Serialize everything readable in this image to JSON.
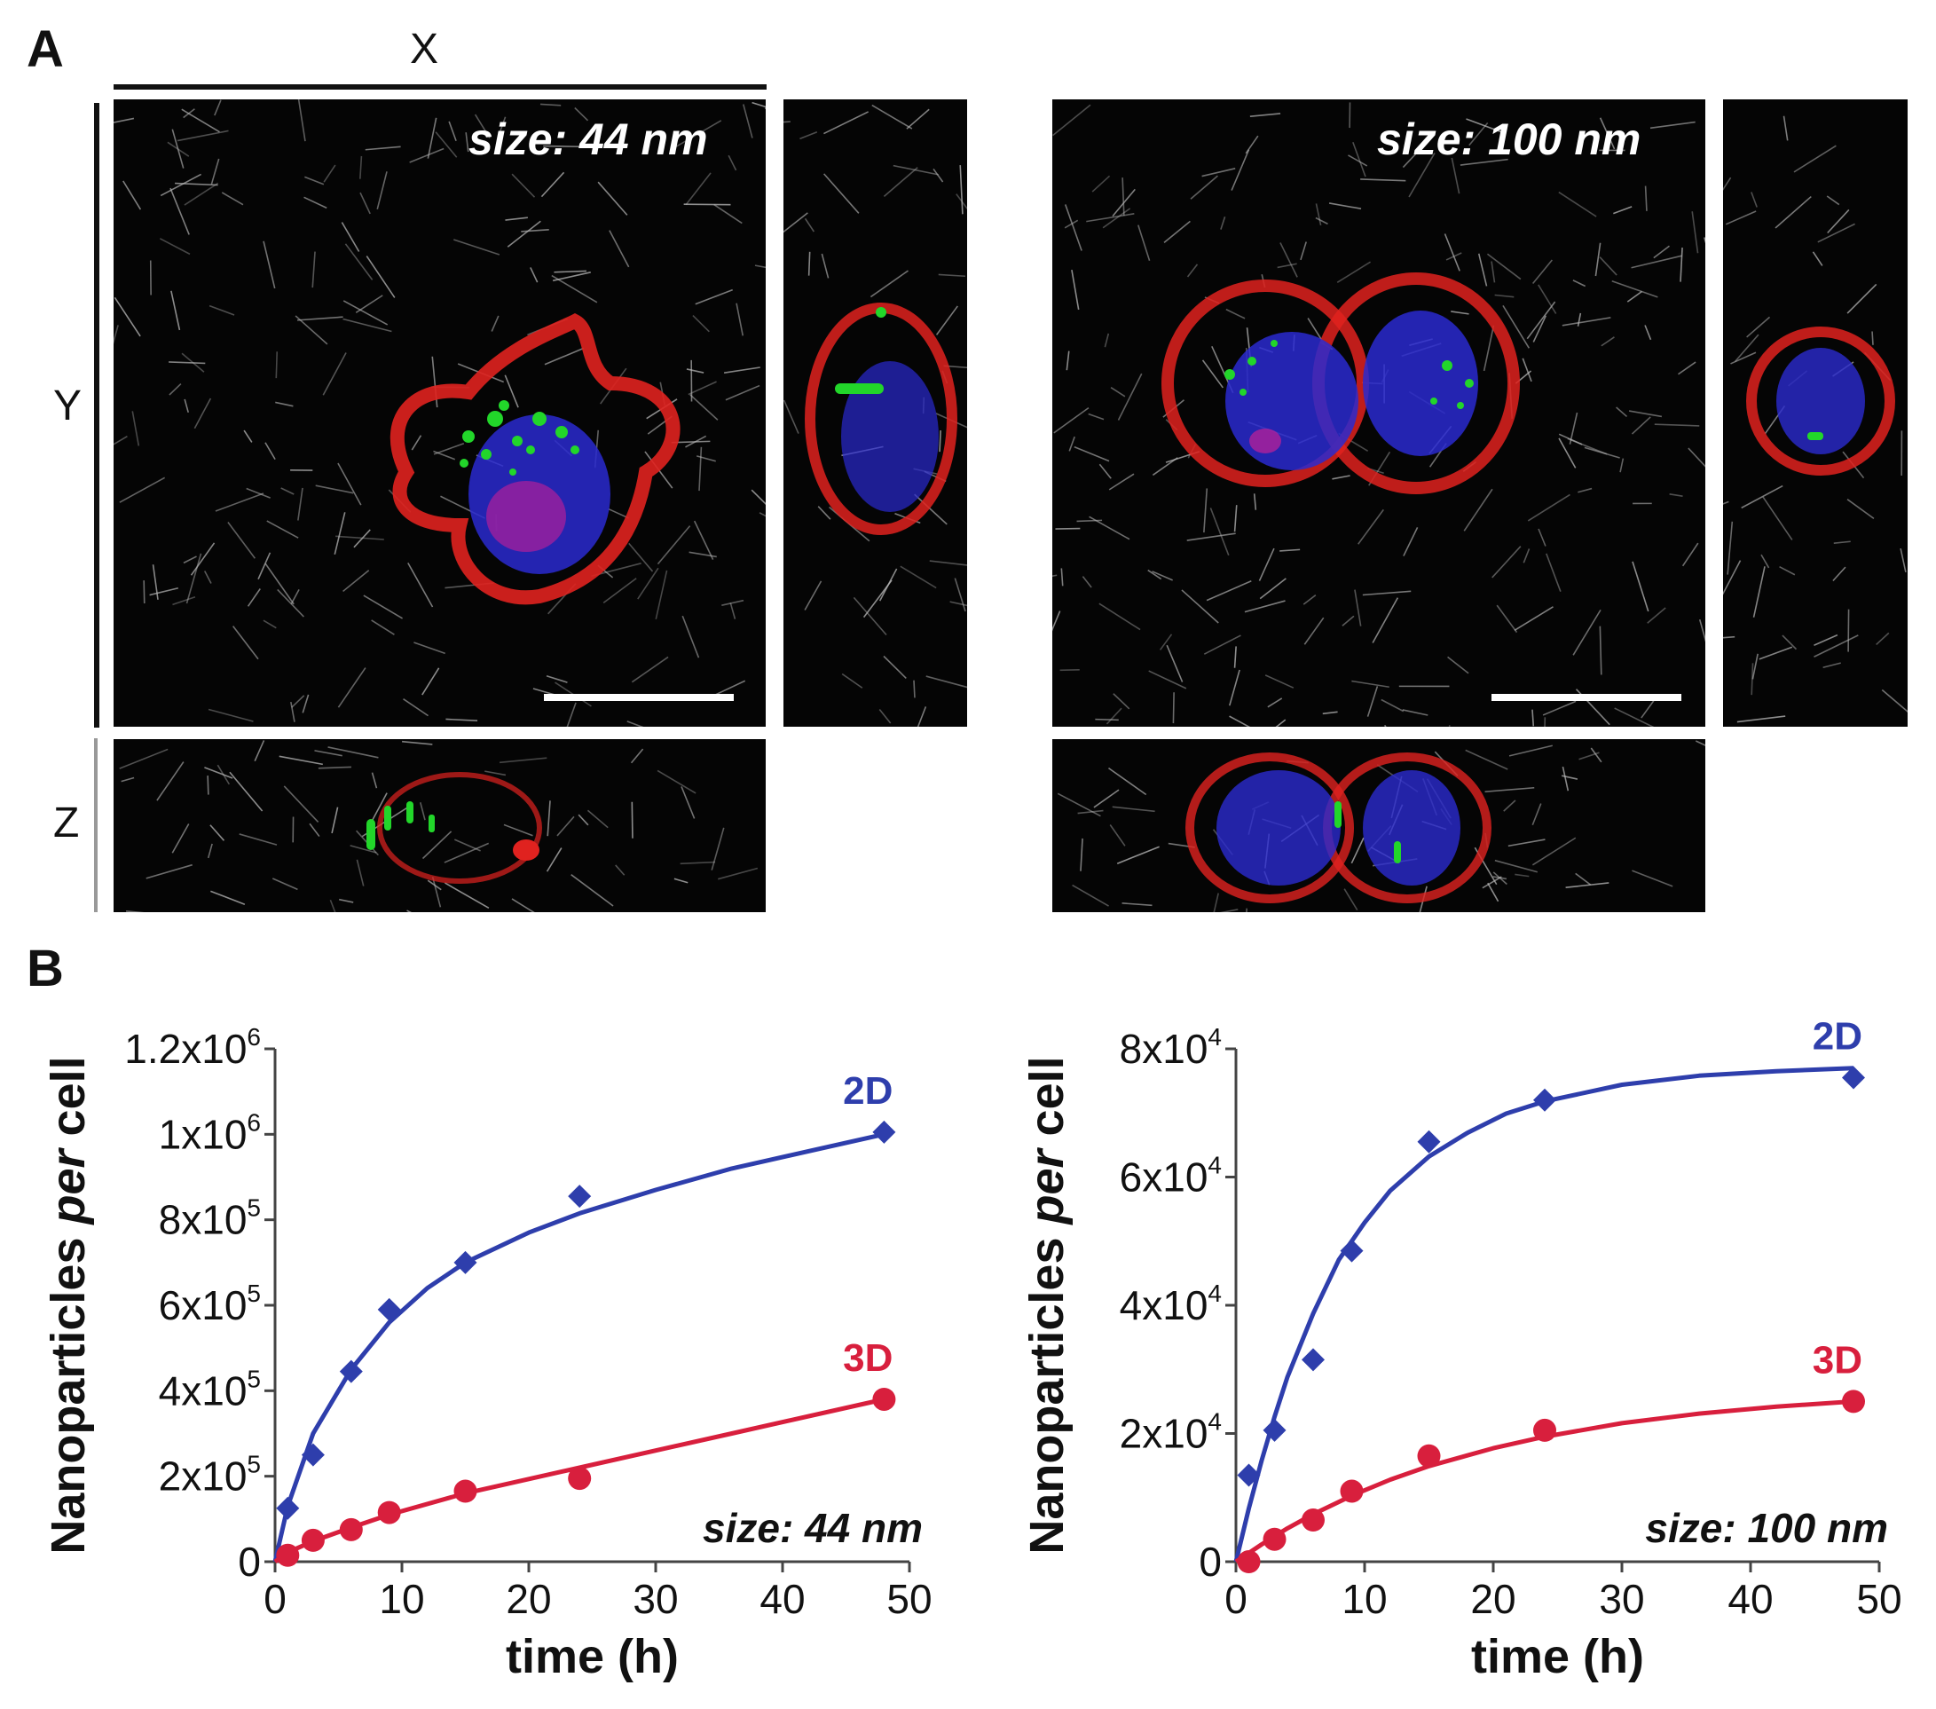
{
  "panel_a": {
    "letter": "A",
    "axis_x": "X",
    "axis_y": "Y",
    "axis_z": "Z",
    "left_size_label": "size: 44 nm",
    "right_size_label": "size: 100 nm",
    "channel_colors": {
      "membrane": "#e0221f",
      "nucleus": "#2a2ad0",
      "nanoparticles": "#22d62a",
      "fibers": "#c8c8c8"
    }
  },
  "panel_b": {
    "letter": "B"
  },
  "chart_data": [
    {
      "type": "scatter",
      "title": "",
      "annotation": "size: 44 nm",
      "xlabel": "time (h)",
      "ylabel_prefix": "Nanoparticles ",
      "ylabel_italic": "per",
      "ylabel_suffix": " cell",
      "xlim": [
        0,
        50
      ],
      "ylim": [
        0,
        1200000
      ],
      "xticks": [
        0,
        10,
        20,
        30,
        40,
        50
      ],
      "yticks": [
        {
          "value": 0,
          "base": "0",
          "exp": ""
        },
        {
          "value": 200000,
          "base": "2x10",
          "exp": "5"
        },
        {
          "value": 400000,
          "base": "4x10",
          "exp": "5"
        },
        {
          "value": 600000,
          "base": "6x10",
          "exp": "5"
        },
        {
          "value": 800000,
          "base": "8x10",
          "exp": "5"
        },
        {
          "value": 1000000,
          "base": "1x10",
          "exp": "6"
        },
        {
          "value": 1200000,
          "base": "1.2x10",
          "exp": "6"
        }
      ],
      "series": [
        {
          "name": "2D",
          "color": "#2e3eac",
          "marker": "diamond",
          "points": [
            [
              1,
              125000
            ],
            [
              3,
              250000
            ],
            [
              6,
              445000
            ],
            [
              9,
              590000
            ],
            [
              15,
              700000
            ],
            [
              24,
              855000
            ],
            [
              48,
              1005000
            ]
          ],
          "fit": [
            [
              0,
              0
            ],
            [
              1,
              130000
            ],
            [
              3,
              300000
            ],
            [
              6,
              450000
            ],
            [
              9,
              560000
            ],
            [
              12,
              640000
            ],
            [
              15,
              700000
            ],
            [
              20,
              770000
            ],
            [
              24,
              815000
            ],
            [
              30,
              870000
            ],
            [
              36,
              920000
            ],
            [
              42,
              960000
            ],
            [
              48,
              1000000
            ]
          ]
        },
        {
          "name": "3D",
          "color": "#d81f3d",
          "marker": "circle",
          "points": [
            [
              1,
              15000
            ],
            [
              3,
              50000
            ],
            [
              6,
              75000
            ],
            [
              9,
              115000
            ],
            [
              15,
              165000
            ],
            [
              24,
              195000
            ],
            [
              48,
              380000
            ]
          ],
          "fit": [
            [
              0,
              0
            ],
            [
              1,
              22000
            ],
            [
              3,
              48000
            ],
            [
              6,
              80000
            ],
            [
              9,
              110000
            ],
            [
              15,
              160000
            ],
            [
              24,
              220000
            ],
            [
              36,
              300000
            ],
            [
              48,
              380000
            ]
          ]
        }
      ]
    },
    {
      "type": "scatter",
      "title": "",
      "annotation": "size: 100 nm",
      "xlabel": "time (h)",
      "ylabel_prefix": "Nanoparticles ",
      "ylabel_italic": "per",
      "ylabel_suffix": " cell",
      "xlim": [
        0,
        50
      ],
      "ylim": [
        0,
        80000
      ],
      "xticks": [
        0,
        10,
        20,
        30,
        40,
        50
      ],
      "yticks": [
        {
          "value": 0,
          "base": "0",
          "exp": ""
        },
        {
          "value": 20000,
          "base": "2x10",
          "exp": "4"
        },
        {
          "value": 40000,
          "base": "4x10",
          "exp": "4"
        },
        {
          "value": 60000,
          "base": "6x10",
          "exp": "4"
        },
        {
          "value": 80000,
          "base": "8x10",
          "exp": "4"
        }
      ],
      "series": [
        {
          "name": "2D",
          "color": "#2e3eac",
          "marker": "diamond",
          "points": [
            [
              1,
              13500
            ],
            [
              3,
              20500
            ],
            [
              6,
              31500
            ],
            [
              9,
              48500
            ],
            [
              15,
              65500
            ],
            [
              24,
              72000
            ],
            [
              48,
              75500
            ]
          ],
          "fit": [
            [
              0,
              0
            ],
            [
              1,
              8300
            ],
            [
              2,
              15800
            ],
            [
              3,
              22600
            ],
            [
              4,
              28800
            ],
            [
              6,
              38700
            ],
            [
              8,
              47100
            ],
            [
              10,
              52900
            ],
            [
              12,
              57900
            ],
            [
              15,
              63200
            ],
            [
              18,
              66900
            ],
            [
              21,
              69900
            ],
            [
              24,
              71800
            ],
            [
              30,
              74400
            ],
            [
              36,
              75800
            ],
            [
              42,
              76500
            ],
            [
              48,
              77000
            ]
          ]
        },
        {
          "name": "3D",
          "color": "#d81f3d",
          "marker": "circle",
          "points": [
            [
              1,
              0
            ],
            [
              3,
              3500
            ],
            [
              6,
              6500
            ],
            [
              9,
              11000
            ],
            [
              15,
              16500
            ],
            [
              24,
              20500
            ],
            [
              48,
              25000
            ]
          ],
          "fit": [
            [
              0,
              0
            ],
            [
              2,
              2700
            ],
            [
              4,
              5200
            ],
            [
              6,
              7400
            ],
            [
              9,
              10300
            ],
            [
              12,
              12800
            ],
            [
              15,
              14900
            ],
            [
              20,
              17700
            ],
            [
              24,
              19500
            ],
            [
              30,
              21600
            ],
            [
              36,
              23100
            ],
            [
              42,
              24200
            ],
            [
              48,
              25000
            ]
          ]
        }
      ]
    }
  ]
}
